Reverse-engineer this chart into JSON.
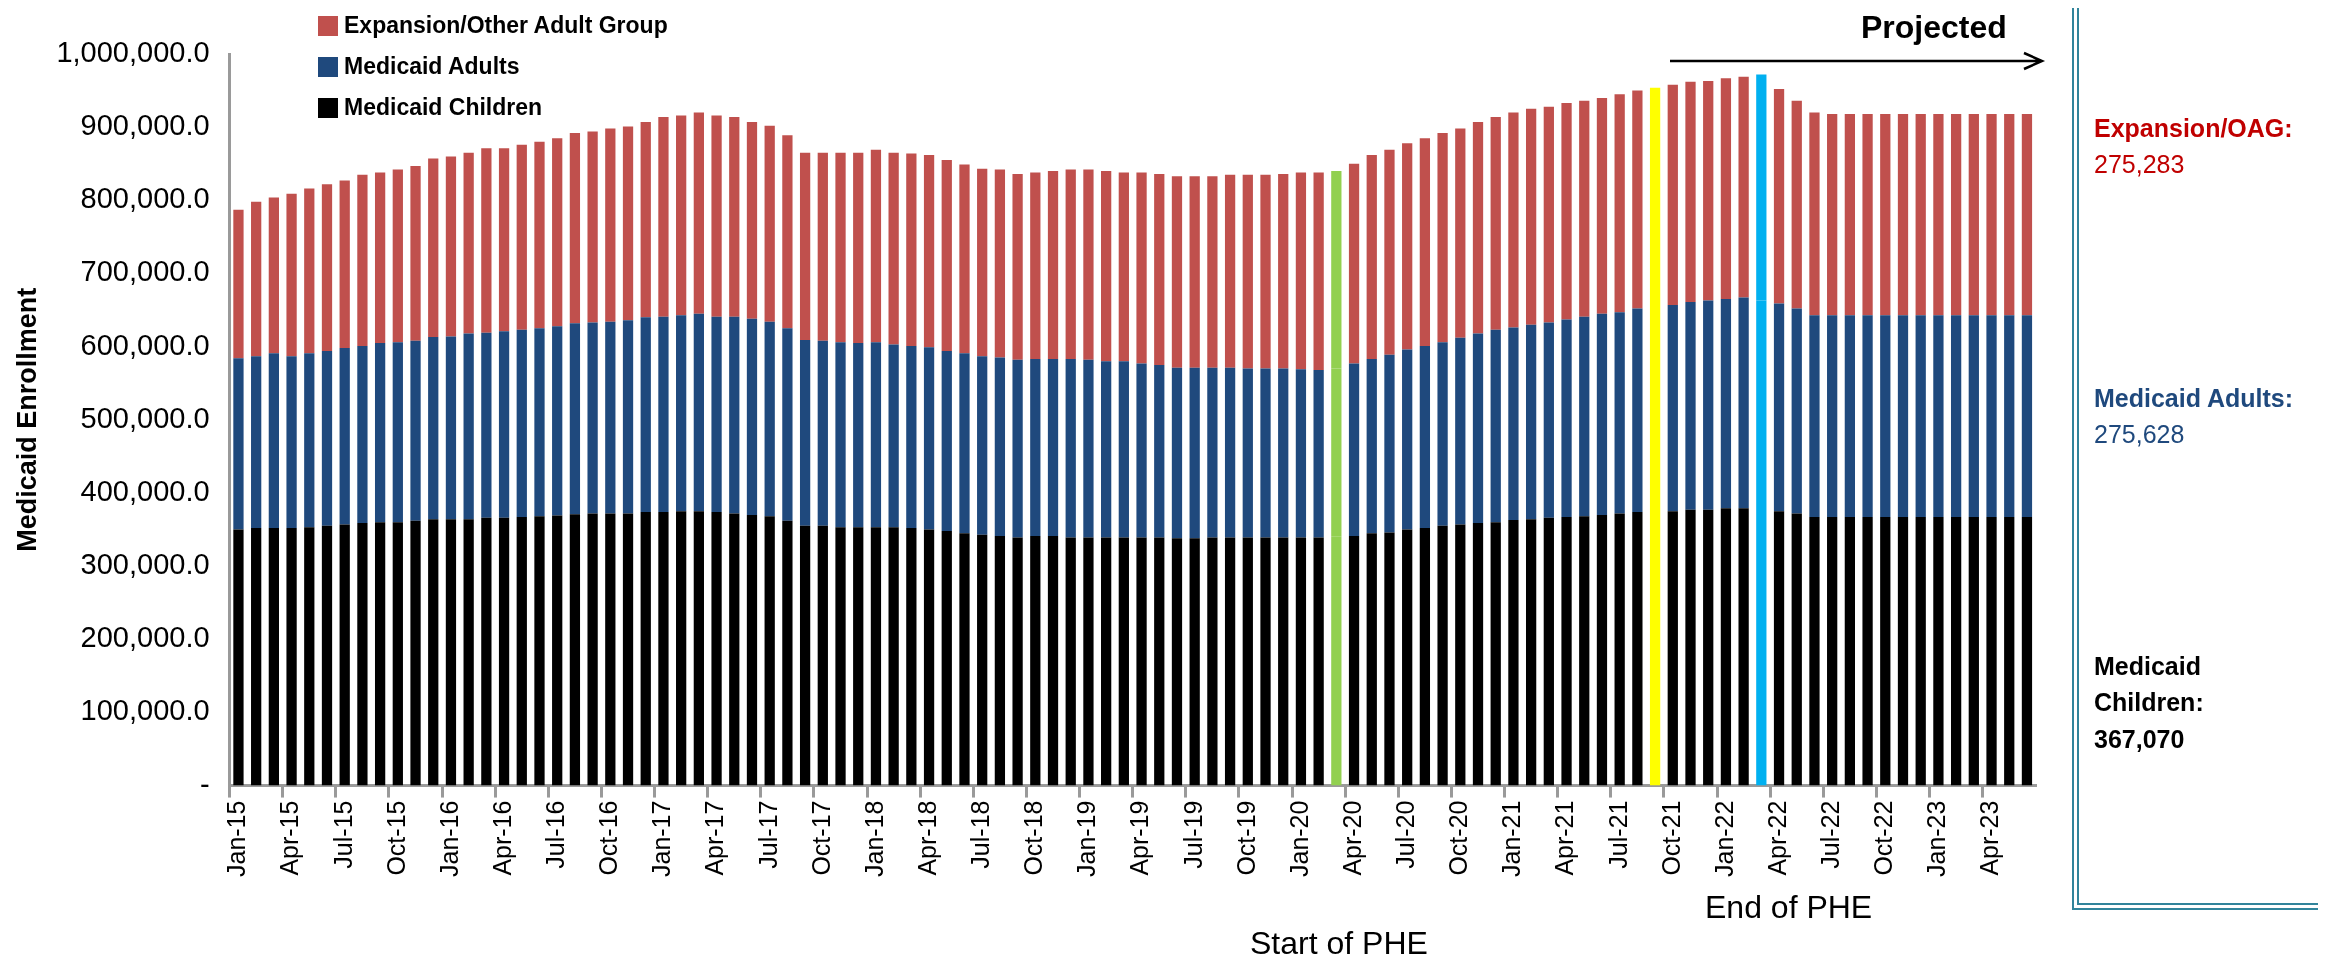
{
  "chart_data": {
    "type": "bar",
    "stacked": true,
    "ylabel": "Medicaid Enrollment",
    "legend": "top left",
    "categories": [
      "Jan-15",
      null,
      null,
      "Apr-15",
      null,
      null,
      "Jul-15",
      null,
      null,
      "Oct-15",
      null,
      null,
      "Jan-16",
      null,
      null,
      "Apr-16",
      null,
      null,
      "Jul-16",
      null,
      null,
      "Oct-16",
      null,
      null,
      "Jan-17",
      null,
      null,
      "Apr-17",
      null,
      null,
      "Jul-17",
      null,
      null,
      "Oct-17",
      null,
      null,
      "Jan-18",
      null,
      null,
      "Apr-18",
      null,
      null,
      "Jul-18",
      null,
      null,
      "Oct-18",
      null,
      null,
      "Jan-19",
      null,
      null,
      "Apr-19",
      null,
      null,
      "Jul-19",
      null,
      null,
      "Oct-19",
      null,
      null,
      "Jan-20",
      null,
      null,
      "Apr-20",
      null,
      null,
      "Jul-20",
      null,
      null,
      "Oct-20",
      null,
      null,
      "Jan-21",
      null,
      null,
      "Apr-21",
      null,
      null,
      "Jul-21",
      null,
      null,
      "Oct-21",
      null,
      null,
      "Jan-22",
      null,
      null,
      "Apr-22",
      null,
      null,
      "Jul-22",
      null,
      null,
      "Oct-22",
      null,
      null,
      "Jan-23",
      null,
      null,
      "Apr-23",
      null,
      null
    ],
    "series": [
      {
        "name": "Medicaid Children",
        "color": "#000000",
        "values": [
          350000,
          352000,
          352000,
          352000,
          353000,
          355000,
          357000,
          359000,
          360000,
          360000,
          362000,
          364000,
          364000,
          364000,
          366000,
          366000,
          367000,
          368000,
          369000,
          371000,
          372000,
          372000,
          372000,
          374000,
          374000,
          375000,
          375000,
          374000,
          372000,
          370000,
          368000,
          362000,
          355000,
          355000,
          353000,
          353000,
          353000,
          353000,
          352000,
          350000,
          348000,
          345000,
          343000,
          341000,
          339000,
          341000,
          341000,
          339000,
          339000,
          339000,
          339000,
          339000,
          339000,
          338000,
          338000,
          339000,
          339000,
          339000,
          339000,
          339000,
          339000,
          339000,
          340000,
          341000,
          345000,
          346000,
          350000,
          352000,
          355000,
          357000,
          359000,
          360000,
          363000,
          364000,
          366000,
          367000,
          368000,
          370000,
          372000,
          374000,
          374000,
          375000,
          377000,
          377000,
          379000,
          379000,
          378000,
          375000,
          372000,
          367000,
          367000,
          367000,
          367000,
          367000,
          367000,
          367000,
          367000,
          367000,
          367000,
          367000,
          367000,
          367000
        ],
        "colors": [
          "#000000",
          "#000000",
          "#000000",
          "#000000",
          "#000000",
          "#000000",
          "#000000",
          "#000000",
          "#000000",
          "#000000",
          "#000000",
          "#000000",
          "#000000",
          "#000000",
          "#000000",
          "#000000",
          "#000000",
          "#000000",
          "#000000",
          "#000000",
          "#000000",
          "#000000",
          "#000000",
          "#000000",
          "#000000",
          "#000000",
          "#000000",
          "#000000",
          "#000000",
          "#000000",
          "#000000",
          "#000000",
          "#000000",
          "#000000",
          "#000000",
          "#000000",
          "#000000",
          "#000000",
          "#000000",
          "#000000",
          "#000000",
          "#000000",
          "#000000",
          "#000000",
          "#000000",
          "#000000",
          "#000000",
          "#000000",
          "#000000",
          "#000000",
          "#000000",
          "#000000",
          "#000000",
          "#000000",
          "#000000",
          "#000000",
          "#000000",
          "#000000",
          "#000000",
          "#000000",
          "#000000",
          "#000000",
          "#92d050",
          "#000000",
          "#000000",
          "#000000",
          "#000000",
          "#000000",
          "#000000",
          "#000000",
          "#000000",
          "#000000",
          "#000000",
          "#000000",
          "#000000",
          "#000000",
          "#000000",
          "#000000",
          "#000000",
          "#000000",
          "#ffff00",
          "#000000",
          "#000000",
          "#000000",
          "#000000",
          "#000000",
          "#00b0f0",
          "#000000",
          "#000000",
          "#000000",
          "#000000",
          "#000000",
          "#000000",
          "#000000",
          "#000000",
          "#000000",
          "#000000",
          "#000000",
          "#000000",
          "#000000",
          "#000000",
          "#000000"
        ]
      },
      {
        "name": "Medicaid Adults",
        "color": "#1f497d",
        "values": [
          234000,
          235000,
          239000,
          235000,
          238000,
          239000,
          241000,
          242000,
          245000,
          246000,
          246000,
          249000,
          250000,
          254000,
          253000,
          255000,
          256000,
          257000,
          259000,
          261000,
          261000,
          262000,
          264000,
          266000,
          267000,
          268000,
          270000,
          267000,
          269000,
          268000,
          266000,
          263000,
          254000,
          253000,
          253000,
          252000,
          253000,
          250000,
          249000,
          249000,
          246000,
          246000,
          244000,
          244000,
          243000,
          242000,
          242000,
          244000,
          243000,
          241000,
          241000,
          238000,
          236000,
          233000,
          233000,
          232000,
          232000,
          231000,
          231000,
          231000,
          230000,
          229000,
          230000,
          236000,
          238000,
          243000,
          246000,
          249000,
          251000,
          255000,
          259000,
          263000,
          263000,
          266000,
          267000,
          270000,
          273000,
          275000,
          275000,
          278000,
          280000,
          282000,
          284000,
          286000,
          286000,
          288000,
          285000,
          284000,
          280000,
          276000,
          276000,
          276000,
          276000,
          276000,
          276000,
          276000,
          276000,
          276000,
          276000,
          276000,
          276000,
          276000
        ],
        "colors": [
          "#1f497d",
          "#1f497d",
          "#1f497d",
          "#1f497d",
          "#1f497d",
          "#1f497d",
          "#1f497d",
          "#1f497d",
          "#1f497d",
          "#1f497d",
          "#1f497d",
          "#1f497d",
          "#1f497d",
          "#1f497d",
          "#1f497d",
          "#1f497d",
          "#1f497d",
          "#1f497d",
          "#1f497d",
          "#1f497d",
          "#1f497d",
          "#1f497d",
          "#1f497d",
          "#1f497d",
          "#1f497d",
          "#1f497d",
          "#1f497d",
          "#1f497d",
          "#1f497d",
          "#1f497d",
          "#1f497d",
          "#1f497d",
          "#1f497d",
          "#1f497d",
          "#1f497d",
          "#1f497d",
          "#1f497d",
          "#1f497d",
          "#1f497d",
          "#1f497d",
          "#1f497d",
          "#1f497d",
          "#1f497d",
          "#1f497d",
          "#1f497d",
          "#1f497d",
          "#1f497d",
          "#1f497d",
          "#1f497d",
          "#1f497d",
          "#1f497d",
          "#1f497d",
          "#1f497d",
          "#1f497d",
          "#1f497d",
          "#1f497d",
          "#1f497d",
          "#1f497d",
          "#1f497d",
          "#1f497d",
          "#1f497d",
          "#1f497d",
          "#92d050",
          "#1f497d",
          "#1f497d",
          "#1f497d",
          "#1f497d",
          "#1f497d",
          "#1f497d",
          "#1f497d",
          "#1f497d",
          "#1f497d",
          "#1f497d",
          "#1f497d",
          "#1f497d",
          "#1f497d",
          "#1f497d",
          "#1f497d",
          "#1f497d",
          "#1f497d",
          "#ffff00",
          "#1f497d",
          "#1f497d",
          "#1f497d",
          "#1f497d",
          "#1f497d",
          "#00b0f0",
          "#1f497d",
          "#1f497d",
          "#1f497d",
          "#1f497d",
          "#1f497d",
          "#1f497d",
          "#1f497d",
          "#1f497d",
          "#1f497d",
          "#1f497d",
          "#1f497d",
          "#1f497d",
          "#1f497d",
          "#1f497d",
          "#1f497d"
        ]
      },
      {
        "name": "Expansion/Other Adult Group",
        "color": "#c0504d",
        "values": [
          203000,
          211000,
          213000,
          222000,
          225000,
          228000,
          229000,
          234000,
          233000,
          236000,
          239000,
          244000,
          246000,
          247000,
          252000,
          250000,
          253000,
          255000,
          257000,
          260000,
          261000,
          264000,
          265000,
          267000,
          273000,
          273000,
          275000,
          275000,
          273000,
          269000,
          268000,
          264000,
          256000,
          257000,
          259000,
          260000,
          263000,
          262000,
          263000,
          263000,
          261000,
          258000,
          256000,
          257000,
          254000,
          255000,
          257000,
          259000,
          260000,
          260000,
          258000,
          261000,
          261000,
          262000,
          262000,
          262000,
          264000,
          265000,
          265000,
          266000,
          269000,
          270000,
          270000,
          273000,
          279000,
          280000,
          282000,
          284000,
          286000,
          286000,
          289000,
          291000,
          294000,
          295000,
          295000,
          296000,
          295000,
          295000,
          298000,
          298000,
          300000,
          301000,
          301000,
          300000,
          302000,
          302000,
          309000,
          293000,
          284000,
          277000,
          275000,
          275000,
          275000,
          275000,
          275000,
          275000,
          275000,
          275000,
          275000,
          275000,
          275000,
          275000
        ],
        "colors": [
          "#c0504d",
          "#c0504d",
          "#c0504d",
          "#c0504d",
          "#c0504d",
          "#c0504d",
          "#c0504d",
          "#c0504d",
          "#c0504d",
          "#c0504d",
          "#c0504d",
          "#c0504d",
          "#c0504d",
          "#c0504d",
          "#c0504d",
          "#c0504d",
          "#c0504d",
          "#c0504d",
          "#c0504d",
          "#c0504d",
          "#c0504d",
          "#c0504d",
          "#c0504d",
          "#c0504d",
          "#c0504d",
          "#c0504d",
          "#c0504d",
          "#c0504d",
          "#c0504d",
          "#c0504d",
          "#c0504d",
          "#c0504d",
          "#c0504d",
          "#c0504d",
          "#c0504d",
          "#c0504d",
          "#c0504d",
          "#c0504d",
          "#c0504d",
          "#c0504d",
          "#c0504d",
          "#c0504d",
          "#c0504d",
          "#c0504d",
          "#c0504d",
          "#c0504d",
          "#c0504d",
          "#c0504d",
          "#c0504d",
          "#c0504d",
          "#c0504d",
          "#c0504d",
          "#c0504d",
          "#c0504d",
          "#c0504d",
          "#c0504d",
          "#c0504d",
          "#c0504d",
          "#c0504d",
          "#c0504d",
          "#c0504d",
          "#c0504d",
          "#92d050",
          "#c0504d",
          "#c0504d",
          "#c0504d",
          "#c0504d",
          "#c0504d",
          "#c0504d",
          "#c0504d",
          "#c0504d",
          "#c0504d",
          "#c0504d",
          "#c0504d",
          "#c0504d",
          "#c0504d",
          "#c0504d",
          "#c0504d",
          "#c0504d",
          "#c0504d",
          "#ffff00",
          "#c0504d",
          "#c0504d",
          "#c0504d",
          "#c0504d",
          "#c0504d",
          "#00b0f0",
          "#c0504d",
          "#c0504d",
          "#c0504d",
          "#c0504d",
          "#c0504d",
          "#c0504d",
          "#c0504d",
          "#c0504d",
          "#c0504d",
          "#c0504d",
          "#c0504d",
          "#c0504d",
          "#c0504d",
          "#c0504d",
          "#c0504d"
        ]
      }
    ],
    "ylim": [
      0,
      1000000
    ],
    "yticks": [
      {
        "value": 0,
        "label": "-"
      },
      {
        "value": 100000,
        "label": "100,000.0"
      },
      {
        "value": 200000,
        "label": "200,000.0"
      },
      {
        "value": 300000,
        "label": "300,000.0"
      },
      {
        "value": 400000,
        "label": "400,000.0"
      },
      {
        "value": 500000,
        "label": "500,000.0"
      },
      {
        "value": 600000,
        "label": "600,000.0"
      },
      {
        "value": 700000,
        "label": "700,000.0"
      },
      {
        "value": 800000,
        "label": "800,000.0"
      },
      {
        "value": 900000,
        "label": "900,000.0"
      },
      {
        "value": 1000000,
        "label": "1,000,000.0"
      }
    ],
    "annotations": [
      "Projected",
      "Start of PHE",
      "End of PHE",
      "Expansion/OAG:\n275,283",
      "Medicaid Adults:\n275,628",
      "Medicaid\nChildren:\n367,070"
    ]
  }
}
